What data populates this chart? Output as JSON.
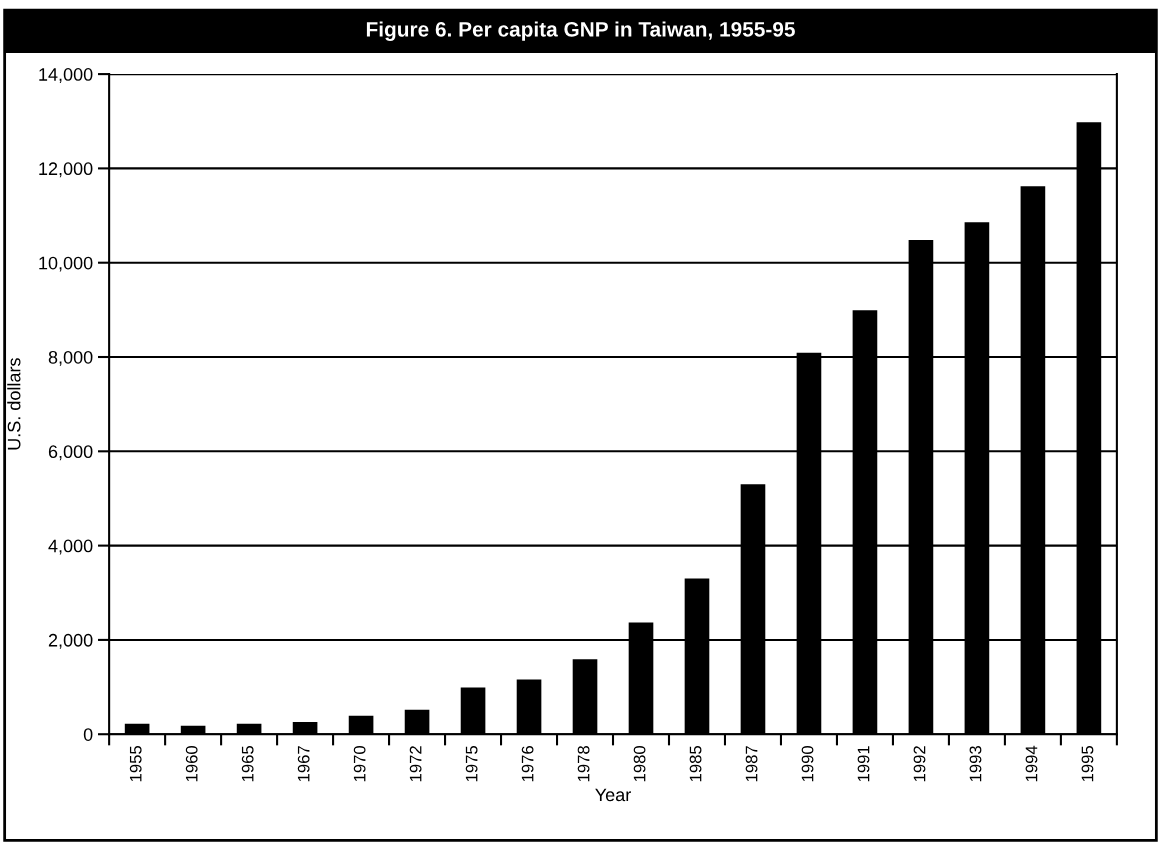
{
  "chart_data": {
    "type": "bar",
    "title": "Figure 6. Per capita GNP in Taiwan, 1955-95",
    "xlabel": "Year",
    "ylabel": "U.S. dollars",
    "categories": [
      "1955",
      "1960",
      "1965",
      "1967",
      "1970",
      "1972",
      "1975",
      "1976",
      "1978",
      "1980",
      "1985",
      "1987",
      "1990",
      "1991",
      "1992",
      "1993",
      "1994",
      "1995"
    ],
    "values": [
      220,
      180,
      220,
      260,
      390,
      520,
      990,
      1160,
      1590,
      2370,
      3300,
      5300,
      8090,
      8990,
      10480,
      10860,
      11620,
      12980
    ],
    "color": "#000000",
    "ylim": [
      0,
      14000
    ],
    "yticks": [
      {
        "value": 0,
        "label": "0"
      },
      {
        "value": 2000,
        "label": "2,000"
      },
      {
        "value": 4000,
        "label": "4,000"
      },
      {
        "value": 6000,
        "label": "6,000"
      },
      {
        "value": 8000,
        "label": "8,000"
      },
      {
        "value": 10000,
        "label": "10,000"
      },
      {
        "value": 12000,
        "label": "12,000"
      },
      {
        "value": 14000,
        "label": "14,000"
      }
    ],
    "grid": "y"
  }
}
